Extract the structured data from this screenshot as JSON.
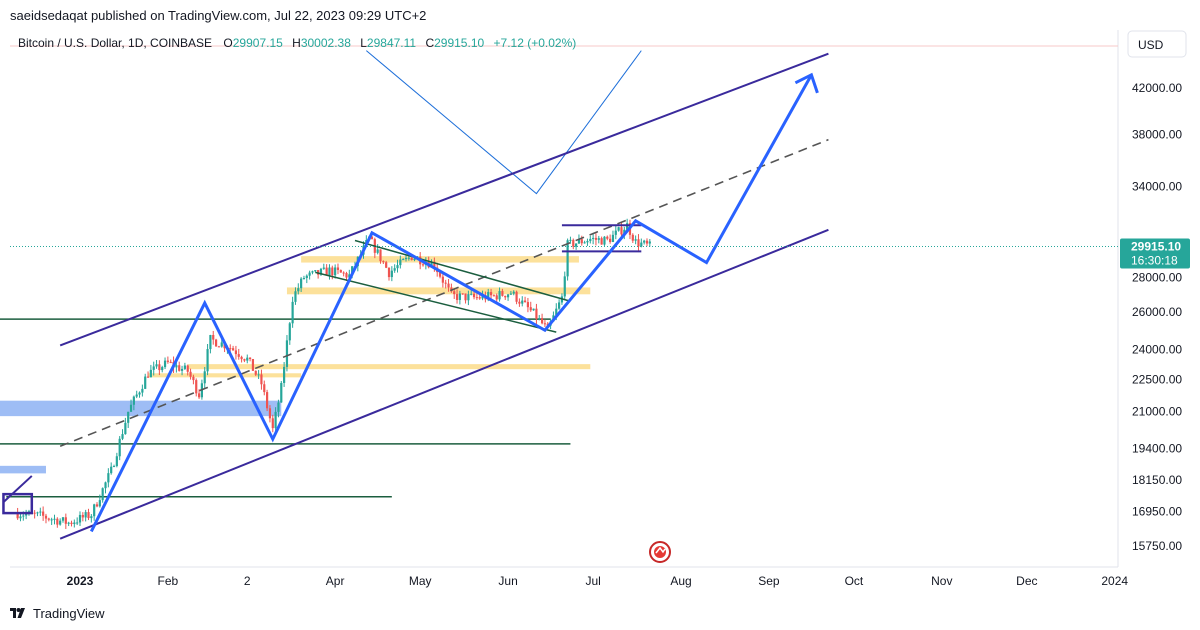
{
  "header": {
    "published_line": "saeidsedaqat published on TradingView.com, Jul 22, 2023 09:29 UTC+2"
  },
  "legend": {
    "symbol": "Bitcoin / U.S. Dollar, 1D, COINBASE",
    "o_label": "O",
    "o_value": "29907.15",
    "h_label": "H",
    "h_value": "30002.38",
    "l_label": "L",
    "l_value": "29847.11",
    "c_label": "C",
    "c_value": "29915.10",
    "change": "+7.12 (+0.02%)"
  },
  "currency_button": "USD",
  "price_badge": {
    "price": "29915.10",
    "countdown": "16:30:18"
  },
  "footer": {
    "brand": "TradingView"
  },
  "colors": {
    "up": "#26a69a",
    "down": "#ef5350",
    "channel": "#3a2a9c",
    "zigzag": "#2962ff",
    "zone": "#fbd77a",
    "zone_blue": "#7ea7f2",
    "support": "#1b5e3f",
    "badge": "#26a69a"
  },
  "chart_data": {
    "type": "candlestick",
    "title": "Bitcoin / U.S. Dollar, 1D, COINBASE",
    "y_ticks": [
      "42000.00",
      "38000.00",
      "34000.00",
      "28000.00",
      "26000.00",
      "24000.00",
      "22500.00",
      "21000.00",
      "19400.00",
      "18150.00",
      "16950.00",
      "15750.00"
    ],
    "x_ticks": [
      "2023",
      "Feb",
      "2",
      "Apr",
      "May",
      "Jun",
      "Jul",
      "Aug",
      "Sep",
      "Oct",
      "Nov",
      "Dec",
      "2024"
    ],
    "last_price": 29915.1,
    "y_scale": "log",
    "ylim": [
      15200,
      46000
    ],
    "xlim": [
      "2022-12-05",
      "2024-01-06"
    ],
    "price_path": [
      [
        "2022-12-10",
        16900
      ],
      [
        "2022-12-18",
        16800
      ],
      [
        "2022-12-28",
        16550
      ],
      [
        "2023-01-05",
        16850
      ],
      [
        "2023-01-12",
        18500
      ],
      [
        "2023-01-18",
        21000
      ],
      [
        "2023-01-25",
        22800
      ],
      [
        "2023-02-01",
        23300
      ],
      [
        "2023-02-08",
        22900
      ],
      [
        "2023-02-12",
        21800
      ],
      [
        "2023-02-16",
        24500
      ],
      [
        "2023-02-22",
        24200
      ],
      [
        "2023-03-01",
        23500
      ],
      [
        "2023-03-06",
        22300
      ],
      [
        "2023-03-10",
        20200
      ],
      [
        "2023-03-13",
        22100
      ],
      [
        "2023-03-17",
        26800
      ],
      [
        "2023-03-21",
        28000
      ],
      [
        "2023-03-30",
        28400
      ],
      [
        "2023-04-06",
        28100
      ],
      [
        "2023-04-13",
        30400
      ],
      [
        "2023-04-20",
        28300
      ],
      [
        "2023-04-28",
        29300
      ],
      [
        "2023-05-06",
        28800
      ],
      [
        "2023-05-12",
        26900
      ],
      [
        "2023-05-20",
        26800
      ],
      [
        "2023-05-27",
        26900
      ],
      [
        "2023-06-02",
        27100
      ],
      [
        "2023-06-10",
        25900
      ],
      [
        "2023-06-15",
        25000
      ],
      [
        "2023-06-20",
        26800
      ],
      [
        "2023-06-22",
        30000
      ],
      [
        "2023-06-30",
        30400
      ],
      [
        "2023-07-06",
        30300
      ],
      [
        "2023-07-13",
        31300
      ],
      [
        "2023-07-16",
        30200
      ],
      [
        "2023-07-21",
        29915
      ]
    ],
    "annotations": {
      "price_levels": [
        25600,
        19600,
        17500
      ],
      "resistance_zones": [
        [
          28900,
          29300
        ],
        [
          27000,
          27400
        ],
        [
          23000,
          23250
        ],
        [
          22600,
          22800
        ]
      ],
      "blue_zones": [
        [
          20800,
          21500
        ],
        [
          18400,
          18700
        ]
      ]
    }
  }
}
